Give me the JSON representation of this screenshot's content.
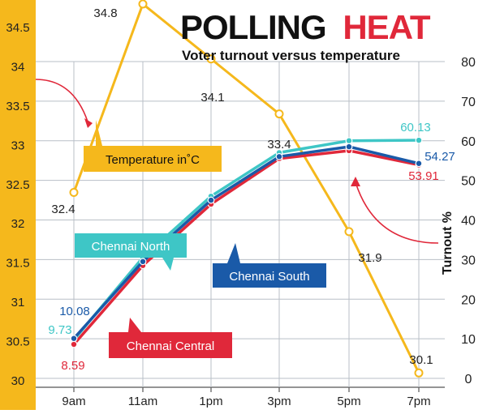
{
  "chart_data": {
    "type": "line",
    "title": "POLLING",
    "title_accent": "HEAT",
    "subtitle": "Voter turnout versus temperature",
    "categories": [
      "9am",
      "11am",
      "1pm",
      "3pm",
      "5pm",
      "7pm"
    ],
    "y_left": {
      "range": [
        30,
        34.6
      ],
      "ticks": [
        "30",
        "30.5",
        "31",
        "31.5",
        "32",
        "32.5",
        "33",
        "33.5",
        "34",
        "34.5"
      ]
    },
    "y_right": {
      "label": "Turnout %",
      "range": [
        0,
        85
      ],
      "ticks": [
        "0",
        "10",
        "20",
        "30",
        "40",
        "50",
        "60",
        "70",
        "80"
      ]
    },
    "grid": true,
    "series": [
      {
        "name": "Temperature in˚C",
        "axis": "left",
        "color": "#f5b81c",
        "values": [
          32.4,
          34.8,
          34.1,
          33.4,
          31.9,
          30.1
        ],
        "labels": [
          "32.4",
          "34.8",
          "34.1",
          "33.4",
          "31.9",
          "30.1"
        ]
      },
      {
        "name": "Chennai North",
        "axis": "right",
        "color": "#3ec6c6",
        "values": [
          9.73,
          30.5,
          46,
          57,
          60,
          60.13
        ],
        "labels": [
          "9.73",
          "",
          "",
          "",
          "",
          "60.13"
        ]
      },
      {
        "name": "Chennai South",
        "axis": "right",
        "color": "#1a5aa8",
        "values": [
          10.08,
          29.5,
          45,
          56,
          58.5,
          54.27
        ],
        "labels": [
          "10.08",
          "",
          "",
          "",
          "",
          "54.27"
        ]
      },
      {
        "name": "Chennai Central",
        "axis": "right",
        "color": "#e0283a",
        "values": [
          8.59,
          28.5,
          44,
          55.5,
          57.5,
          53.91
        ],
        "labels": [
          "8.59",
          "",
          "",
          "",
          "",
          "53.91"
        ]
      }
    ]
  },
  "colors": {
    "left_axis_bg": "#f5b81c",
    "title_accent": "#e0283a",
    "grid": "#b9bfc7"
  }
}
